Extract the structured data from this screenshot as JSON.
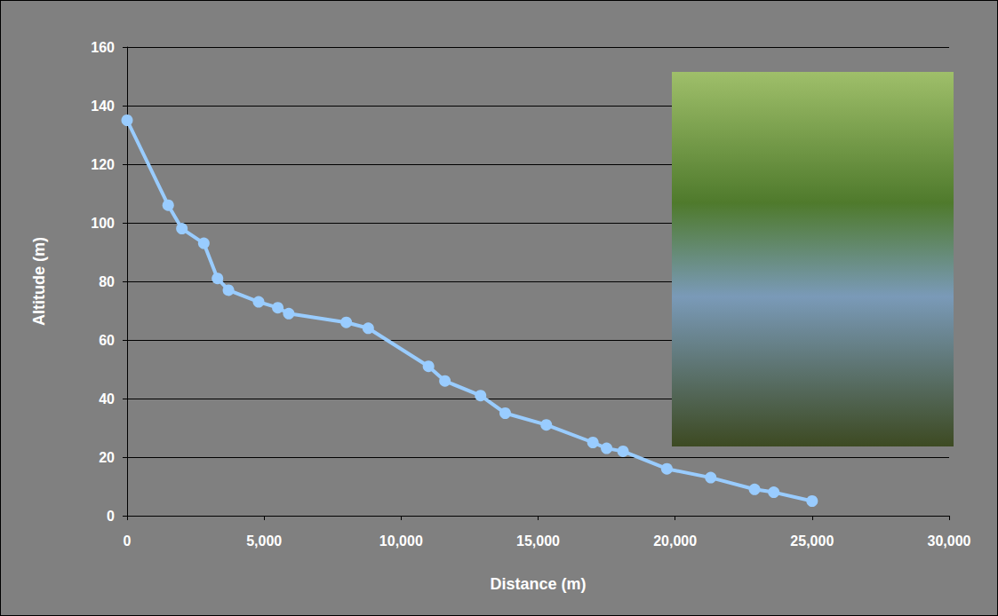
{
  "chart_data": {
    "type": "line",
    "x_label": "Distance (m)",
    "y_label": "Altitude (m)",
    "series": [
      {
        "name": "Altitude",
        "color": "#99ccff",
        "marker": "circle",
        "x": [
          0,
          1500,
          2000,
          2800,
          3300,
          3700,
          4800,
          5500,
          5900,
          8000,
          8800,
          11000,
          11600,
          12900,
          13800,
          15300,
          17000,
          17500,
          18100,
          19700,
          21300,
          22900,
          23600,
          25000
        ],
        "values": [
          135,
          106,
          98,
          93,
          81,
          77,
          73,
          71,
          69,
          66,
          64,
          51,
          46,
          41,
          35,
          31,
          25,
          23,
          22,
          16,
          13,
          9,
          8,
          5
        ]
      }
    ],
    "xlim": [
      0,
      30000
    ],
    "xticks": [
      0,
      5000,
      10000,
      15000,
      20000,
      25000,
      30000
    ],
    "ylim": [
      0,
      160
    ],
    "yticks": [
      0,
      20,
      40,
      60,
      80,
      100,
      120,
      140,
      160
    ],
    "grid": true
  }
}
